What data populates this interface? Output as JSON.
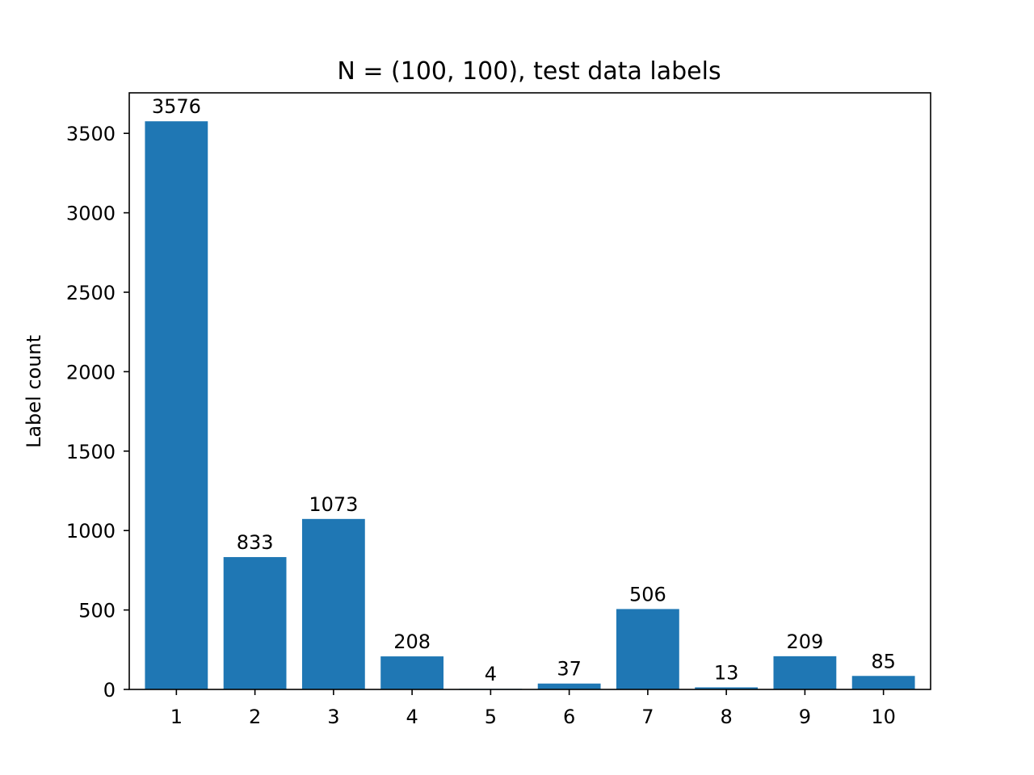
{
  "chart_data": {
    "type": "bar",
    "title": "N = (100, 100), test data labels",
    "xlabel": "",
    "ylabel": "Label count",
    "categories": [
      "1",
      "2",
      "3",
      "4",
      "5",
      "6",
      "7",
      "8",
      "9",
      "10"
    ],
    "values": [
      3576,
      833,
      1073,
      208,
      4,
      37,
      506,
      13,
      209,
      85
    ],
    "data_labels": [
      "3576",
      "833",
      "1073",
      "208",
      "4",
      "37",
      "506",
      "13",
      "209",
      "85"
    ],
    "yticks": [
      0,
      500,
      1000,
      1500,
      2000,
      2500,
      3000,
      3500
    ],
    "ylim": [
      0,
      3755
    ],
    "grid": false,
    "colors": {
      "bar": "#1f77b4",
      "axes": "#000000",
      "background": "#ffffff"
    }
  }
}
